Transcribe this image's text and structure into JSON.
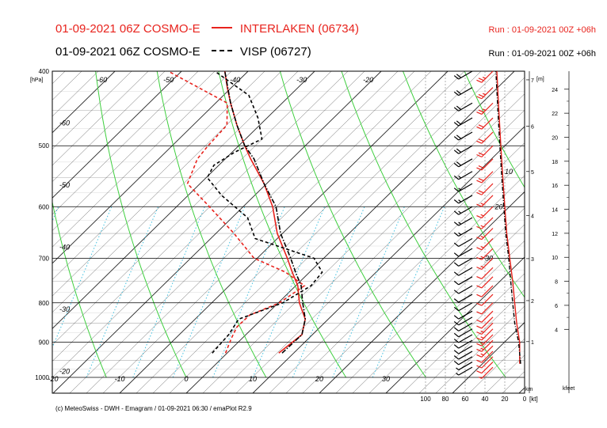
{
  "header": {
    "line1_run": "01-09-2021 06Z COSMO-E",
    "line1_station": "INTERLAKEN (06734)",
    "line1_right": "Run : 01-09-2021 00Z +06h",
    "line2_run": "01-09-2021 06Z COSMO-E",
    "line2_station": "VISP (06727)",
    "line2_right": "Run : 01-09-2021 00Z +06h"
  },
  "footer": "(c) MeteoSwiss - DWH - Emagram / 01-09-2021 06:30 / emaPlot R2.9",
  "colors": {
    "interlaken": "#e8231d",
    "visp": "#000000",
    "dry_adiabat": "#3fcf3f",
    "mixing_ratio": "#40c0e0",
    "isotherm": "#000000"
  },
  "chart_data": {
    "type": "line",
    "diagram": "emagram",
    "y_axis": {
      "label": "[hPa]",
      "scale": "log",
      "ylim": [
        1000,
        400
      ],
      "ticks": [
        400,
        500,
        600,
        700,
        800,
        900,
        1000
      ]
    },
    "x_axis": {
      "ticks": [
        -20,
        -10,
        0,
        10,
        20,
        30
      ]
    },
    "diagonal_temp_labels": [
      -60,
      -50,
      -40,
      -30,
      -20,
      -60,
      -50,
      -40,
      -30,
      -20
    ],
    "height_axis_m": {
      "label": "[m]",
      "ticks": [
        1,
        2,
        3,
        4,
        5,
        6,
        7
      ]
    },
    "height_axis_kfeet": {
      "label": "kfeet",
      "ticks": [
        4,
        6,
        8,
        10,
        12,
        14,
        16,
        18,
        20,
        22,
        24
      ]
    },
    "wind_axis": {
      "label": "[kt]",
      "ticks": [
        100,
        80,
        60,
        40,
        20,
        0
      ],
      "km_label": "km"
    },
    "wind_speed_labels": [
      10,
      20,
      30
    ],
    "series": [
      {
        "name": "INTERLAKEN (06734)",
        "role": "temperature",
        "points": [
          [
            930,
            10.0
          ],
          [
            880,
            10.5
          ],
          [
            840,
            8.5
          ],
          [
            800,
            5.0
          ],
          [
            760,
            2.0
          ],
          [
            730,
            -1.0
          ],
          [
            700,
            -4.0
          ],
          [
            650,
            -9.5
          ],
          [
            600,
            -14.5
          ],
          [
            560,
            -19.5
          ],
          [
            520,
            -25.5
          ],
          [
            500,
            -28.5
          ],
          [
            470,
            -33.0
          ],
          [
            440,
            -37.5
          ],
          [
            420,
            -40.5
          ],
          [
            400,
            -43.5
          ]
        ]
      },
      {
        "name": "INTERLAKEN (06734)",
        "role": "dewpoint",
        "points": [
          [
            930,
            2.0
          ],
          [
            890,
            0.5
          ],
          [
            860,
            -0.5
          ],
          [
            830,
            -0.5
          ],
          [
            800,
            2.0
          ],
          [
            760,
            3.0
          ],
          [
            730,
            -2.0
          ],
          [
            700,
            -9.0
          ],
          [
            650,
            -16.0
          ],
          [
            600,
            -24.0
          ],
          [
            560,
            -31.0
          ],
          [
            520,
            -33.5
          ],
          [
            500,
            -34.0
          ],
          [
            470,
            -34.5
          ],
          [
            440,
            -38.0
          ],
          [
            400,
            -52.0
          ]
        ]
      },
      {
        "name": "VISP (06727)",
        "role": "temperature",
        "points": [
          [
            930,
            10.5
          ],
          [
            880,
            10.5
          ],
          [
            840,
            8.5
          ],
          [
            800,
            5.5
          ],
          [
            760,
            2.5
          ],
          [
            730,
            -0.5
          ],
          [
            700,
            -3.5
          ],
          [
            650,
            -9.0
          ],
          [
            600,
            -14.0
          ],
          [
            560,
            -19.5
          ],
          [
            520,
            -25.0
          ],
          [
            500,
            -28.5
          ],
          [
            470,
            -33.0
          ],
          [
            440,
            -37.5
          ],
          [
            400,
            -43.5
          ]
        ]
      },
      {
        "name": "VISP (06727)",
        "role": "dewpoint",
        "points": [
          [
            930,
            0.0
          ],
          [
            880,
            -0.5
          ],
          [
            840,
            -1.5
          ],
          [
            800,
            2.5
          ],
          [
            760,
            4.0
          ],
          [
            730,
            3.5
          ],
          [
            700,
            0.0
          ],
          [
            660,
            -12.0
          ],
          [
            620,
            -16.5
          ],
          [
            580,
            -24.0
          ],
          [
            550,
            -29.0
          ],
          [
            530,
            -30.0
          ],
          [
            510,
            -29.0
          ],
          [
            490,
            -27.0
          ],
          [
            460,
            -31.0
          ],
          [
            430,
            -36.0
          ],
          [
            400,
            -45.0
          ]
        ]
      },
      {
        "name": "INTERLAKEN (06734)",
        "role": "wind_speed_kt",
        "points": [
          [
            960,
            5
          ],
          [
            900,
            5
          ],
          [
            850,
            8
          ],
          [
            800,
            10
          ],
          [
            750,
            12
          ],
          [
            700,
            15
          ],
          [
            650,
            18
          ],
          [
            600,
            20
          ],
          [
            550,
            22
          ],
          [
            500,
            24
          ],
          [
            450,
            26
          ],
          [
            400,
            28
          ]
        ]
      },
      {
        "name": "VISP (06727)",
        "role": "wind_speed_kt",
        "points": [
          [
            960,
            4
          ],
          [
            900,
            6
          ],
          [
            850,
            10
          ],
          [
            800,
            12
          ],
          [
            750,
            14
          ],
          [
            700,
            16
          ],
          [
            650,
            19
          ],
          [
            600,
            21
          ],
          [
            550,
            23
          ],
          [
            500,
            25
          ],
          [
            450,
            27
          ],
          [
            400,
            29
          ]
        ]
      }
    ],
    "wind_barbs": {
      "interlaken_direction_deg": 225,
      "visp_direction_deg": 240,
      "pressures": [
        970,
        955,
        940,
        925,
        910,
        895,
        880,
        865,
        850,
        835,
        820,
        800,
        780,
        760,
        740,
        720,
        700,
        680,
        660,
        640,
        620,
        600,
        580,
        560,
        540,
        520,
        500,
        480,
        460,
        440,
        420,
        400
      ],
      "speeds_kt": [
        8,
        10,
        12,
        14,
        15,
        15,
        16,
        16,
        15,
        14,
        13,
        12,
        12,
        12,
        13,
        14,
        15,
        15,
        16,
        17,
        18,
        18,
        19,
        20,
        21,
        22,
        23,
        23,
        24,
        25,
        25,
        26
      ]
    }
  }
}
